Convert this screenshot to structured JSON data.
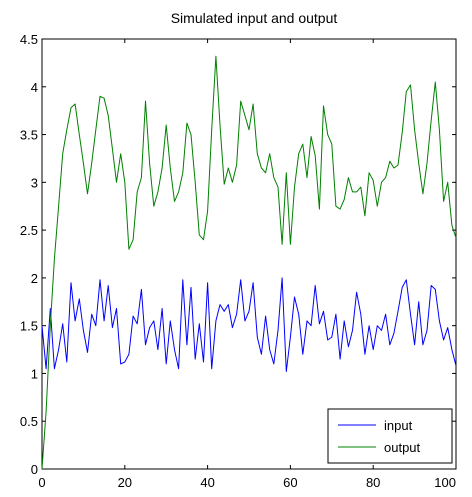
{
  "chart_data": {
    "type": "line",
    "title": "Simulated input and output",
    "xlabel": "",
    "ylabel": "",
    "xlim": [
      0,
      100
    ],
    "ylim": [
      0,
      4.5
    ],
    "xticks": [
      0,
      20,
      40,
      60,
      80,
      100
    ],
    "yticks": [
      0,
      0.5,
      1,
      1.5,
      2,
      2.5,
      3,
      3.5,
      4,
      4.5
    ],
    "xtick_labels": [
      "0",
      "20",
      "40",
      "60",
      "80",
      "100"
    ],
    "ytick_labels": [
      "0",
      "0.5",
      "1",
      "1.5",
      "2",
      "2.5",
      "3",
      "3.5",
      "4",
      "4.5"
    ],
    "grid": false,
    "legend_position": "bottom-right",
    "series": [
      {
        "name": "input",
        "color": "#0000ff",
        "x": [
          0,
          1,
          2,
          3,
          4,
          5,
          6,
          7,
          8,
          9,
          10,
          11,
          12,
          13,
          14,
          15,
          16,
          17,
          18,
          19,
          20,
          21,
          22,
          23,
          24,
          25,
          26,
          27,
          28,
          29,
          30,
          31,
          32,
          33,
          34,
          35,
          36,
          37,
          38,
          39,
          40,
          41,
          42,
          43,
          44,
          45,
          46,
          47,
          48,
          49,
          50,
          51,
          52,
          53,
          54,
          55,
          56,
          57,
          58,
          59,
          60,
          61,
          62,
          63,
          64,
          65,
          66,
          67,
          68,
          69,
          70,
          71,
          72,
          73,
          74,
          75,
          76,
          77,
          78,
          79,
          80,
          81,
          82,
          83,
          84,
          85,
          86,
          87,
          88,
          89,
          90,
          91,
          92,
          93,
          94,
          95,
          96,
          97,
          98,
          99,
          100
        ],
        "y": [
          1.5,
          1.05,
          1.68,
          1.05,
          1.25,
          1.52,
          1.12,
          1.95,
          1.55,
          1.78,
          1.45,
          1.22,
          1.62,
          1.5,
          1.98,
          1.55,
          1.92,
          1.48,
          1.68,
          1.1,
          1.12,
          1.2,
          1.6,
          1.52,
          1.88,
          1.3,
          1.48,
          1.55,
          1.25,
          1.68,
          1.1,
          1.55,
          1.25,
          1.05,
          1.98,
          1.3,
          1.9,
          1.15,
          1.52,
          1.12,
          1.95,
          1.05,
          1.55,
          1.72,
          1.65,
          1.72,
          1.48,
          1.62,
          1.98,
          1.55,
          1.65,
          1.95,
          1.38,
          1.2,
          1.6,
          1.25,
          1.1,
          1.45,
          2.0,
          1.02,
          1.38,
          1.8,
          1.62,
          1.2,
          1.55,
          1.5,
          1.92,
          1.52,
          1.65,
          1.35,
          1.38,
          1.62,
          1.15,
          1.55,
          1.28,
          1.45,
          1.85,
          1.62,
          1.2,
          1.5,
          1.25,
          1.5,
          1.45,
          1.62,
          1.3,
          1.42,
          1.65,
          1.9,
          1.98,
          1.62,
          1.3,
          1.75,
          1.3,
          1.45,
          1.92,
          1.88,
          1.55,
          1.35,
          1.48,
          1.25,
          1.08
        ]
      },
      {
        "name": "output",
        "color": "#008000",
        "x": [
          0,
          1,
          2,
          3,
          4,
          5,
          6,
          7,
          8,
          9,
          10,
          11,
          12,
          13,
          14,
          15,
          16,
          17,
          18,
          19,
          20,
          21,
          22,
          23,
          24,
          25,
          26,
          27,
          28,
          29,
          30,
          31,
          32,
          33,
          34,
          35,
          36,
          37,
          38,
          39,
          40,
          41,
          42,
          43,
          44,
          45,
          46,
          47,
          48,
          49,
          50,
          51,
          52,
          53,
          54,
          55,
          56,
          57,
          58,
          59,
          60,
          61,
          62,
          63,
          64,
          65,
          66,
          67,
          68,
          69,
          70,
          71,
          72,
          73,
          74,
          75,
          76,
          77,
          78,
          79,
          80,
          81,
          82,
          83,
          84,
          85,
          86,
          87,
          88,
          89,
          90,
          91,
          92,
          93,
          94,
          95,
          96,
          97,
          98,
          99,
          100
        ],
        "y": [
          0,
          0.6,
          1.5,
          2.2,
          2.75,
          3.3,
          3.55,
          3.78,
          3.82,
          3.5,
          3.2,
          2.88,
          3.2,
          3.55,
          3.9,
          3.88,
          3.7,
          3.35,
          3.0,
          3.3,
          3.0,
          2.3,
          2.4,
          2.9,
          3.05,
          3.85,
          3.2,
          2.75,
          2.9,
          3.15,
          3.6,
          3.15,
          2.8,
          2.9,
          3.1,
          3.62,
          3.5,
          3.0,
          2.45,
          2.4,
          2.7,
          3.55,
          4.32,
          3.6,
          2.98,
          3.15,
          3.0,
          3.18,
          3.85,
          3.7,
          3.55,
          3.82,
          3.3,
          3.15,
          3.1,
          3.3,
          3.05,
          2.95,
          2.35,
          3.1,
          2.35,
          2.95,
          3.3,
          3.4,
          3.05,
          3.48,
          3.28,
          2.72,
          3.8,
          3.5,
          3.4,
          2.75,
          2.72,
          2.82,
          3.05,
          2.9,
          2.9,
          2.95,
          2.65,
          3.1,
          3.02,
          2.75,
          3.0,
          3.05,
          3.22,
          3.15,
          3.18,
          3.52,
          3.95,
          4.02,
          3.55,
          3.2,
          2.88,
          3.2,
          3.65,
          4.05,
          3.55,
          2.8,
          3.0,
          2.55,
          2.42
        ]
      }
    ]
  }
}
